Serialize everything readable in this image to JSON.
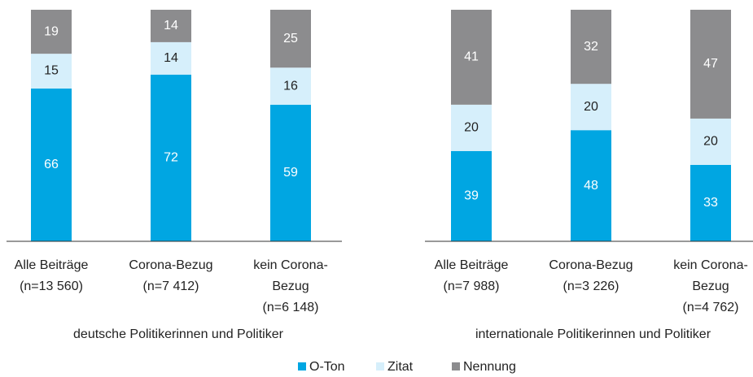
{
  "chart_data": [
    {
      "type": "bar",
      "stacked": true,
      "title": "deutsche Politikerinnen und Politiker",
      "categories": [
        [
          "Alle Beiträge",
          "(n=13 560)"
        ],
        [
          "Corona-Bezug",
          "(n=7 412)"
        ],
        [
          "kein Corona-",
          "Bezug",
          "(n=6 148)"
        ]
      ],
      "series": [
        {
          "values": [
            66,
            72,
            59
          ]
        },
        {
          "values": [
            15,
            14,
            16
          ]
        },
        {
          "values": [
            19,
            14,
            25
          ]
        }
      ],
      "ylim": [
        0,
        100
      ]
    },
    {
      "type": "bar",
      "stacked": true,
      "title": "internationale Politikerinnen und Politiker",
      "categories": [
        [
          "Alle Beiträge",
          "(n=7 988)"
        ],
        [
          "Corona-Bezug",
          "(n=3 226)"
        ],
        [
          "kein Corona-",
          "Bezug",
          "(n=4 762)"
        ]
      ],
      "series": [
        {
          "values": [
            39,
            48,
            33
          ]
        },
        {
          "values": [
            20,
            20,
            20
          ]
        },
        {
          "values": [
            41,
            32,
            47
          ]
        }
      ],
      "ylim": [
        0,
        100
      ]
    }
  ],
  "legend": [
    {
      "name": "O-Ton",
      "color": "#00a6e2",
      "label_color": "#ffffff"
    },
    {
      "name": "Zitat",
      "color": "#d6effb",
      "label_color": "#222222"
    },
    {
      "name": "Nennung",
      "color": "#8c8c8e",
      "label_color": "#ffffff"
    }
  ]
}
